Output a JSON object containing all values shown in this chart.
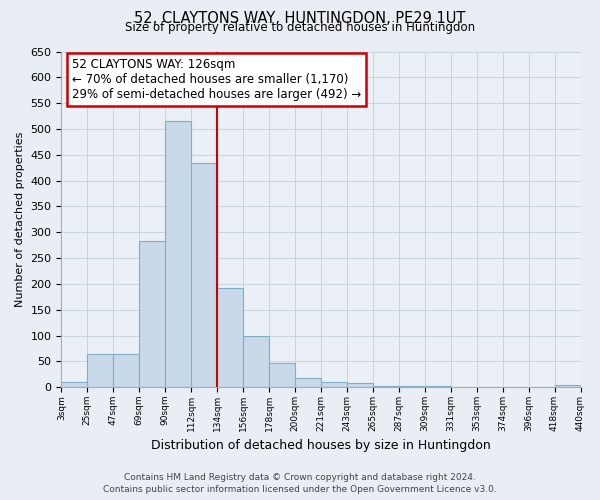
{
  "title": "52, CLAYTONS WAY, HUNTINGDON, PE29 1UT",
  "subtitle": "Size of property relative to detached houses in Huntingdon",
  "xlabel": "Distribution of detached houses by size in Huntingdon",
  "ylabel": "Number of detached properties",
  "bar_labels": [
    "3sqm",
    "25sqm",
    "47sqm",
    "69sqm",
    "90sqm",
    "112sqm",
    "134sqm",
    "156sqm",
    "178sqm",
    "200sqm",
    "221sqm",
    "243sqm",
    "265sqm",
    "287sqm",
    "309sqm",
    "331sqm",
    "353sqm",
    "374sqm",
    "396sqm",
    "418sqm",
    "440sqm"
  ],
  "bar_heights": [
    10,
    65,
    65,
    283,
    515,
    435,
    192,
    100,
    46,
    18,
    10,
    8,
    3,
    3,
    2,
    1,
    0,
    0,
    0,
    4
  ],
  "bar_color": "#c8daea",
  "bar_edge_color": "#7fafc8",
  "vline_x": 6,
  "vline_color": "#cc0000",
  "annotation_line1": "52 CLAYTONS WAY: 126sqm",
  "annotation_line2": "← 70% of detached houses are smaller (1,170)",
  "annotation_line3": "29% of semi-detached houses are larger (492) →",
  "annotation_box_color": "#ffffff",
  "annotation_box_edge": "#cc0000",
  "ylim": [
    0,
    650
  ],
  "yticks": [
    0,
    50,
    100,
    150,
    200,
    250,
    300,
    350,
    400,
    450,
    500,
    550,
    600,
    650
  ],
  "footer_line1": "Contains HM Land Registry data © Crown copyright and database right 2024.",
  "footer_line2": "Contains public sector information licensed under the Open Government Licence v3.0.",
  "bg_color": "#e8eef4",
  "plot_bg_color": "#eaf0f6",
  "grid_color": "#c8d4e0"
}
